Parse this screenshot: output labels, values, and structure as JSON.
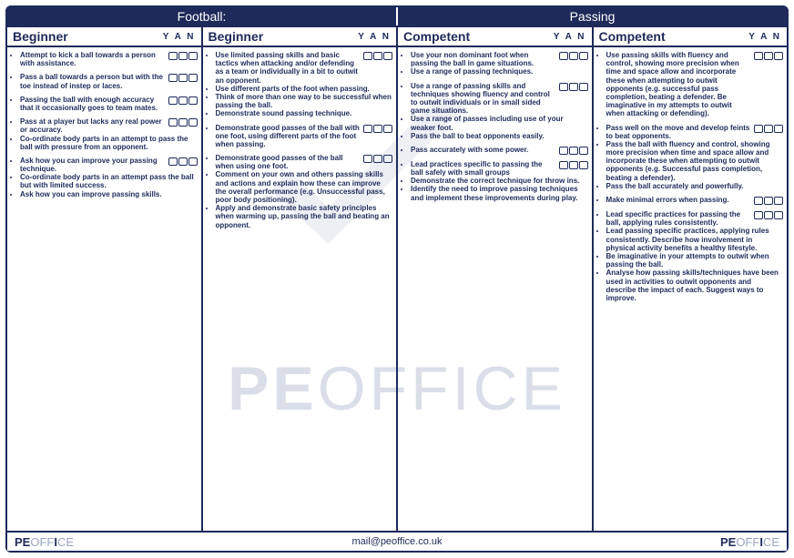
{
  "colors": {
    "primary": "#1e2a5a",
    "background": "#ffffff",
    "watermark": "rgba(150,160,190,0.35)"
  },
  "titles": {
    "left": "Football:",
    "right": "Passing"
  },
  "yan": "Y  A  N",
  "columns": [
    {
      "level": "Beginner",
      "groups": [
        {
          "items": [
            "Attempt to kick a ball towards a person with assistance."
          ]
        },
        {
          "items": [
            "Pass a ball towards a person but with the toe instead of instep or laces."
          ]
        },
        {
          "items": [
            "Passing the ball with enough accuracy that it occasionally goes to team mates."
          ]
        },
        {
          "items": [
            "Pass at a player but lacks any real power or accuracy.",
            "Co-ordinate body parts in an attempt to pass the ball with pressure from an opponent."
          ]
        },
        {
          "items": [
            "Ask how you can improve your passing technique.",
            "Co-ordinate body parts in an attempt pass the ball but with limited success.",
            "Ask how you can improve passing skills."
          ]
        }
      ]
    },
    {
      "level": "Beginner",
      "groups": [
        {
          "items": [
            "Use limited passing skills and basic tactics when attacking and/or defending as a team or individually in a bit to outwit an opponent.",
            "Use different parts of the foot when passing.",
            "Think of more than one way to be successful when passing the ball.",
            "Demonstrate sound passing technique."
          ]
        },
        {
          "items": [
            "Demonstrate good passes of the ball with one foot, using different parts of the foot when passing."
          ]
        },
        {
          "items": [
            "Demonstrate good passes of the ball when using one foot.",
            "Comment on your own and others passing skills and actions and explain how these can improve the overall performance (e.g. Unsuccessful pass, poor body positioning).",
            "Apply and demonstrate basic safety principles when warming up, passing the ball and beating an opponent."
          ]
        }
      ]
    },
    {
      "level": "Competent",
      "groups": [
        {
          "items": [
            "Use your non dominant foot when passing the ball in game situations.",
            "Use a range of passing techniques."
          ]
        },
        {
          "items": [
            "Use a range of passing skills and techniques showing fluency and control to outwit individuals or in small sided game situations.",
            "Use a range of passes including use of your weaker foot.",
            "Pass the ball to beat opponents easily."
          ]
        },
        {
          "items": [
            "Pass accurately with some power."
          ]
        },
        {
          "items": [
            "Lead practices specific to passing the ball safely with small groups",
            "Demonstrate the correct technique for throw ins.",
            "Identify the need to improve passing techniques and implement these improvements during play."
          ]
        }
      ]
    },
    {
      "level": "Competent",
      "groups": [
        {
          "items": [
            "Use passing skills with fluency and control, showing more precision when time and space allow and incorporate these when attempting to outwit opponents (e.g. successful pass completion, beating a defender. Be imaginative in my attempts to outwit when attacking or defending)."
          ]
        },
        {
          "items": [
            "Pass well on the move and develop feints to beat opponents.",
            "Pass the ball with fluency and control, showing more precision when time and space allow and incorporate these when attempting to outwit opponents (e.g. Successful pass completion, beating a defender).",
            "Pass the ball accurately and powerfully."
          ]
        },
        {
          "items": [
            "Make minimal errors when passing."
          ]
        },
        {
          "items": [
            "Lead specific practices for passing the ball, applying rules consistently.",
            "Lead passing specific practices, applying rules consistently. Describe how involvement in physical activity benefits a healthy lifestyle.",
            "Be imaginative in your attempts to outwit when passing the ball.",
            "Analyse how passing skills/techniques have been used in activities to outwit opponents and describe the impact of each. Suggest ways to improve."
          ]
        }
      ]
    }
  ],
  "footer": {
    "brand_pe": "PE",
    "brand_off": "OFF",
    "brand_i": "I",
    "brand_ce": "CE",
    "mail": "mail@peoffice.co.uk"
  },
  "watermark": {
    "text_pe": "PE",
    "text_office": "OFFICE"
  }
}
